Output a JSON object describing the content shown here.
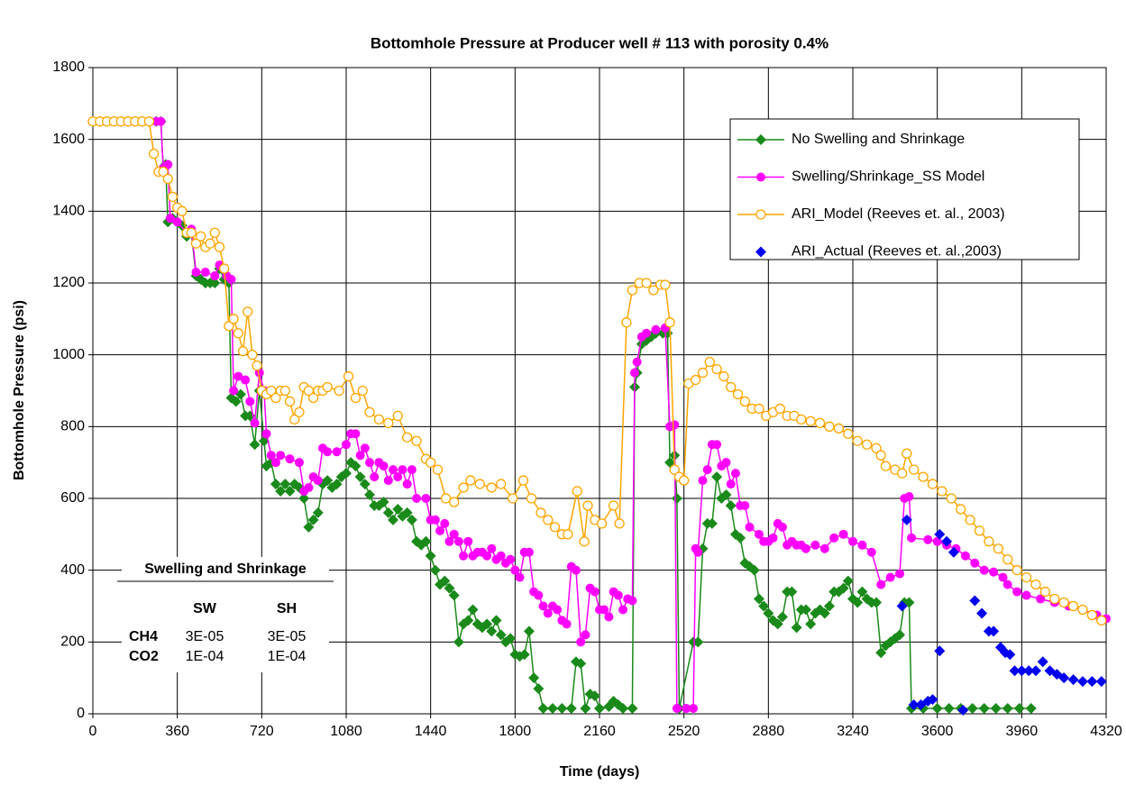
{
  "chart_data": {
    "type": "line",
    "title": "Bottomhole Pressure at Producer well # 113 with porosity 0.4%",
    "x_label": "Time (days)",
    "y_label": "Bottomhole Pressure (psi)",
    "xlim": [
      0,
      4320
    ],
    "xticks": [
      0,
      360,
      720,
      1080,
      1440,
      1800,
      2160,
      2520,
      2880,
      3240,
      3600,
      3960,
      4320
    ],
    "ylim": [
      0,
      1800
    ],
    "yticks": [
      0,
      200,
      400,
      600,
      800,
      1000,
      1200,
      1400,
      1600,
      1800
    ],
    "grid": true,
    "legend": "upper right",
    "series": [
      {
        "name": "No Swelling and Shrinkage",
        "color": "#1a8a1a",
        "marker": "diamond",
        "line": true,
        "x": [
          0,
          30,
          60,
          90,
          120,
          150,
          180,
          210,
          240,
          270,
          290,
          300,
          310,
          320,
          340,
          360,
          380,
          400,
          420,
          440,
          460,
          480,
          500,
          520,
          540,
          560,
          580,
          590,
          610,
          630,
          650,
          670,
          690,
          710,
          730,
          740,
          760,
          780,
          800,
          820,
          840,
          860,
          880,
          900,
          920,
          940,
          960,
          980,
          1000,
          1020,
          1040,
          1060,
          1080,
          1100,
          1120,
          1140,
          1160,
          1180,
          1200,
          1220,
          1240,
          1260,
          1280,
          1300,
          1320,
          1340,
          1360,
          1380,
          1400,
          1420,
          1440,
          1460,
          1480,
          1500,
          1520,
          1540,
          1560,
          1580,
          1600,
          1620,
          1640,
          1660,
          1680,
          1700,
          1720,
          1740,
          1760,
          1780,
          1800,
          1820,
          1840,
          1860,
          1880,
          1900,
          1920,
          1960,
          2000,
          2040,
          2060,
          2080,
          2100,
          2120,
          2140,
          2160,
          2200,
          2220,
          2240,
          2260,
          2300,
          2310,
          2320,
          2340,
          2360,
          2380,
          2400,
          2430,
          2450,
          2460,
          2480,
          2490,
          2500,
          2560,
          2580,
          2600,
          2620,
          2640,
          2660,
          2680,
          2700,
          2720,
          2740,
          2760,
          2780,
          2800,
          2820,
          2840,
          2860,
          2880,
          2900,
          2920,
          2940,
          2960,
          2980,
          3000,
          3020,
          3040,
          3060,
          3080,
          3100,
          3120,
          3140,
          3160,
          3180,
          3200,
          3220,
          3240,
          3260,
          3280,
          3300,
          3320,
          3340,
          3360,
          3380,
          3400,
          3420,
          3440,
          3460,
          3480,
          3490,
          3540,
          3600,
          3650,
          3700,
          3750,
          3800,
          3850,
          3900,
          3950,
          4000
        ],
        "values": [
          1650,
          1650,
          1650,
          1650,
          1650,
          1650,
          1650,
          1650,
          1650,
          1650,
          1650,
          1520,
          1530,
          1370,
          1380,
          1370,
          1360,
          1330,
          1340,
          1220,
          1210,
          1200,
          1200,
          1200,
          1240,
          1210,
          1200,
          880,
          870,
          890,
          830,
          830,
          750,
          900,
          760,
          690,
          700,
          640,
          620,
          640,
          620,
          640,
          630,
          600,
          520,
          540,
          560,
          640,
          650,
          630,
          640,
          660,
          670,
          700,
          690,
          660,
          640,
          610,
          580,
          580,
          590,
          560,
          540,
          570,
          550,
          560,
          540,
          480,
          470,
          480,
          440,
          400,
          360,
          370,
          350,
          330,
          200,
          250,
          260,
          290,
          250,
          240,
          250,
          230,
          260,
          220,
          200,
          210,
          165,
          160,
          165,
          230,
          100,
          70,
          15,
          15,
          15,
          15,
          145,
          140,
          15,
          55,
          50,
          15,
          20,
          35,
          25,
          15,
          15,
          910,
          950,
          1030,
          1040,
          1050,
          1060,
          1060,
          1060,
          700,
          720,
          600,
          15,
          200,
          200,
          460,
          530,
          530,
          660,
          600,
          610,
          580,
          500,
          490,
          420,
          410,
          400,
          320,
          300,
          280,
          260,
          250,
          270,
          340,
          340,
          240,
          290,
          290,
          250,
          280,
          290,
          280,
          300,
          340,
          340,
          350,
          370,
          320,
          310,
          340,
          320,
          310,
          310,
          170,
          190,
          200,
          210,
          220,
          310,
          310,
          15,
          15,
          15,
          15,
          15,
          15,
          15,
          15,
          15,
          15,
          15
        ]
      },
      {
        "name": "Swelling/Shrinkage_SS Model",
        "color": "#ff00ff",
        "marker": "circle",
        "line": true,
        "x": [
          0,
          30,
          60,
          90,
          120,
          150,
          180,
          210,
          240,
          270,
          290,
          300,
          320,
          330,
          360,
          400,
          420,
          440,
          480,
          520,
          540,
          570,
          590,
          600,
          620,
          650,
          670,
          690,
          710,
          730,
          740,
          760,
          780,
          800,
          840,
          880,
          900,
          920,
          940,
          960,
          980,
          1000,
          1040,
          1080,
          1100,
          1120,
          1140,
          1160,
          1180,
          1200,
          1220,
          1240,
          1260,
          1280,
          1300,
          1320,
          1340,
          1360,
          1380,
          1420,
          1440,
          1460,
          1480,
          1500,
          1520,
          1540,
          1560,
          1580,
          1600,
          1620,
          1640,
          1660,
          1680,
          1700,
          1720,
          1740,
          1760,
          1780,
          1800,
          1820,
          1840,
          1860,
          1880,
          1900,
          1920,
          1940,
          1960,
          1980,
          2000,
          2020,
          2040,
          2060,
          2080,
          2100,
          2120,
          2140,
          2160,
          2180,
          2200,
          2220,
          2240,
          2260,
          2280,
          2300,
          2310,
          2320,
          2340,
          2360,
          2400,
          2440,
          2460,
          2480,
          2490,
          2530,
          2560,
          2570,
          2580,
          2600,
          2620,
          2640,
          2660,
          2680,
          2700,
          2720,
          2740,
          2760,
          2780,
          2800,
          2840,
          2860,
          2880,
          2900,
          2920,
          2940,
          2960,
          2980,
          3000,
          3020,
          3040,
          3080,
          3120,
          3160,
          3200,
          3240,
          3280,
          3320,
          3360,
          3400,
          3440,
          3460,
          3480,
          3490,
          3560,
          3600,
          3640,
          3680,
          3720,
          3760,
          3800,
          3840,
          3880,
          3900,
          3940,
          3980,
          4040,
          4100,
          4160,
          4220,
          4280,
          4320
        ],
        "values": [
          1650,
          1650,
          1650,
          1650,
          1650,
          1650,
          1650,
          1650,
          1650,
          1650,
          1650,
          1520,
          1530,
          1380,
          1370,
          1340,
          1350,
          1230,
          1230,
          1220,
          1250,
          1220,
          1210,
          900,
          940,
          930,
          870,
          810,
          950,
          900,
          780,
          720,
          700,
          720,
          710,
          700,
          620,
          630,
          660,
          650,
          740,
          730,
          730,
          750,
          780,
          780,
          720,
          740,
          700,
          660,
          700,
          690,
          650,
          680,
          660,
          680,
          640,
          680,
          600,
          600,
          540,
          540,
          510,
          530,
          480,
          500,
          480,
          440,
          480,
          440,
          450,
          450,
          440,
          460,
          430,
          440,
          420,
          430,
          400,
          380,
          450,
          450,
          340,
          330,
          300,
          280,
          300,
          290,
          260,
          250,
          410,
          400,
          200,
          220,
          350,
          340,
          290,
          290,
          270,
          340,
          330,
          290,
          320,
          315,
          950,
          980,
          1050,
          1060,
          1070,
          1075,
          800,
          805,
          15,
          15,
          15,
          460,
          450,
          650,
          680,
          750,
          750,
          690,
          700,
          640,
          670,
          580,
          580,
          520,
          500,
          480,
          480,
          490,
          530,
          520,
          470,
          480,
          470,
          470,
          460,
          470,
          460,
          490,
          500,
          480,
          470,
          450,
          360,
          380,
          390,
          600,
          605,
          490,
          485,
          480,
          470,
          460,
          440,
          420,
          400,
          395,
          380,
          360,
          340,
          330,
          320,
          310,
          300,
          290,
          275,
          265
        ]
      },
      {
        "name": "ARI_Model (Reeves et. al., 2003)",
        "color": "#ffa500",
        "marker": "open-circle",
        "line": true,
        "x": [
          0,
          30,
          60,
          90,
          120,
          150,
          180,
          210,
          240,
          260,
          280,
          300,
          320,
          340,
          360,
          380,
          400,
          420,
          440,
          460,
          480,
          500,
          520,
          540,
          560,
          580,
          600,
          620,
          640,
          660,
          680,
          700,
          720,
          740,
          760,
          780,
          800,
          820,
          840,
          860,
          880,
          900,
          920,
          940,
          960,
          980,
          1000,
          1050,
          1090,
          1120,
          1150,
          1180,
          1220,
          1260,
          1300,
          1340,
          1380,
          1420,
          1440,
          1470,
          1505,
          1540,
          1580,
          1610,
          1650,
          1700,
          1740,
          1790,
          1835,
          1870,
          1910,
          1940,
          1970,
          2000,
          2025,
          2065,
          2095,
          2110,
          2140,
          2170,
          2220,
          2245,
          2275,
          2300,
          2330,
          2360,
          2390,
          2420,
          2440,
          2460,
          2480,
          2500,
          2520,
          2540,
          2570,
          2600,
          2630,
          2660,
          2690,
          2720,
          2750,
          2780,
          2810,
          2840,
          2870,
          2900,
          2930,
          2960,
          2990,
          3020,
          3060,
          3100,
          3140,
          3180,
          3220,
          3260,
          3300,
          3340,
          3360,
          3380,
          3420,
          3450,
          3470,
          3500,
          3540,
          3580,
          3620,
          3660,
          3700,
          3740,
          3780,
          3820,
          3860,
          3900,
          3940,
          3980,
          4020,
          4060,
          4100,
          4140,
          4180,
          4220,
          4260,
          4300
        ],
        "values": [
          1650,
          1650,
          1650,
          1650,
          1650,
          1650,
          1650,
          1650,
          1650,
          1560,
          1510,
          1510,
          1490,
          1440,
          1410,
          1400,
          1340,
          1340,
          1310,
          1330,
          1300,
          1310,
          1340,
          1300,
          1240,
          1080,
          1100,
          1060,
          1010,
          1120,
          1000,
          970,
          900,
          890,
          900,
          880,
          900,
          900,
          870,
          820,
          840,
          910,
          900,
          880,
          900,
          900,
          910,
          900,
          940,
          880,
          900,
          840,
          820,
          810,
          830,
          770,
          760,
          710,
          700,
          680,
          600,
          590,
          630,
          650,
          640,
          630,
          640,
          600,
          650,
          600,
          560,
          540,
          520,
          500,
          500,
          620,
          480,
          580,
          540,
          530,
          580,
          530,
          1090,
          1180,
          1200,
          1200,
          1180,
          1195,
          1195,
          1090,
          680,
          660,
          650,
          920,
          930,
          950,
          980,
          960,
          940,
          910,
          890,
          870,
          850,
          850,
          830,
          840,
          850,
          830,
          830,
          820,
          815,
          810,
          800,
          795,
          780,
          760,
          750,
          740,
          720,
          690,
          680,
          670,
          725,
          680,
          660,
          640,
          620,
          600,
          570,
          540,
          510,
          480,
          460,
          430,
          400,
          380,
          360,
          340,
          320,
          310,
          300,
          290,
          275,
          260
        ]
      },
      {
        "name": "ARI_Actual (Reeves et. al.,2003)",
        "color": "#0000ee",
        "marker": "diamond",
        "line": false,
        "x": [
          3450,
          3470,
          3500,
          3530,
          3560,
          3580,
          3610,
          3610,
          3640,
          3670,
          3710,
          3760,
          3790,
          3820,
          3840,
          3870,
          3890,
          3910,
          3930,
          3960,
          3990,
          4020,
          4050,
          4080,
          4110,
          4140,
          4180,
          4220,
          4260,
          4300
        ],
        "values": [
          300,
          540,
          25,
          25,
          35,
          40,
          175,
          500,
          480,
          450,
          10,
          315,
          280,
          230,
          230,
          185,
          170,
          165,
          120,
          120,
          120,
          120,
          145,
          120,
          110,
          100,
          95,
          90,
          90,
          90
        ]
      }
    ],
    "inset": {
      "title": "Swelling and Shrinkage",
      "columns": [
        "SW",
        "SH"
      ],
      "rows": [
        {
          "label": "CH4",
          "cells": [
            "3E-05",
            "3E-05"
          ]
        },
        {
          "label": "CO2",
          "cells": [
            "1E-04",
            "1E-04"
          ]
        }
      ]
    }
  }
}
